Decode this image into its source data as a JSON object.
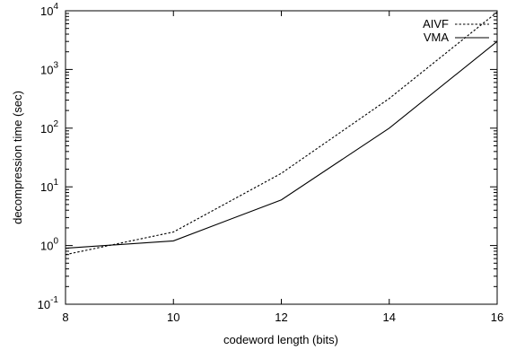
{
  "chart_data": {
    "type": "line",
    "xlabel": "codeword length (bits)",
    "ylabel": "decompression time (sec)",
    "x": [
      8,
      10,
      12,
      14,
      16
    ],
    "xlim": [
      8,
      16
    ],
    "ylim": [
      0.1,
      10000
    ],
    "yscale": "log",
    "xticks": [
      "8",
      "10",
      "12",
      "14",
      "16"
    ],
    "yticks": [
      {
        "base": "10",
        "exp": "-1"
      },
      {
        "base": "10",
        "exp": "0"
      },
      {
        "base": "10",
        "exp": "1"
      },
      {
        "base": "10",
        "exp": "2"
      },
      {
        "base": "10",
        "exp": "3"
      },
      {
        "base": "10",
        "exp": "4"
      }
    ],
    "grid": false,
    "legend_position": "top-right",
    "series": [
      {
        "name": "AIVF",
        "style": "dotted",
        "color": "#000000",
        "values": [
          0.7,
          1.7,
          17,
          320,
          9500
        ]
      },
      {
        "name": "VMA",
        "style": "solid",
        "color": "#000000",
        "values": [
          0.9,
          1.2,
          6,
          100,
          3000
        ]
      }
    ]
  }
}
